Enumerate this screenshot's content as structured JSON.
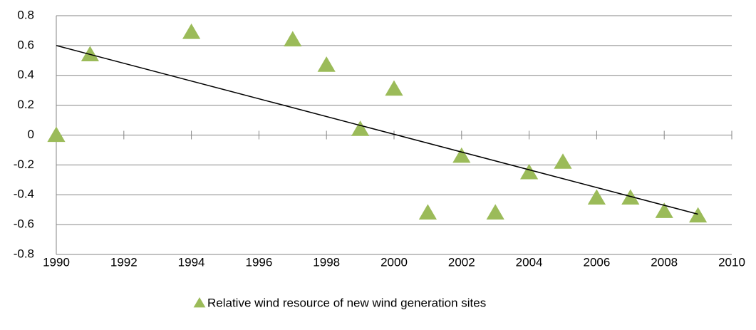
{
  "chart_data": {
    "type": "scatter",
    "x": [
      1990,
      1991,
      1994,
      1997,
      1998,
      1999,
      2000,
      2001,
      2002,
      2003,
      2004,
      2005,
      2006,
      2007,
      2008,
      2009
    ],
    "series": [
      {
        "name": "Relative wind resource of new wind generation sites",
        "color": "#9bbb59",
        "values": [
          0,
          0.54,
          0.69,
          0.64,
          0.47,
          0.04,
          0.31,
          -0.52,
          -0.14,
          -0.52,
          -0.25,
          -0.18,
          -0.42,
          -0.42,
          -0.51,
          -0.54
        ]
      }
    ],
    "trend_line": {
      "x": [
        1990,
        2009
      ],
      "values": [
        0.6,
        -0.53
      ],
      "color": "#000000"
    },
    "xlim": [
      1990,
      2010
    ],
    "xticks": [
      1990,
      1992,
      1994,
      1996,
      1998,
      2000,
      2002,
      2004,
      2006,
      2008,
      2010
    ],
    "ylim": [
      -0.8,
      0.8
    ],
    "yticks": [
      -0.8,
      -0.6,
      -0.4,
      -0.2,
      0,
      0.2,
      0.4,
      0.6,
      0.8
    ],
    "grid": true,
    "legend": "bottom"
  }
}
